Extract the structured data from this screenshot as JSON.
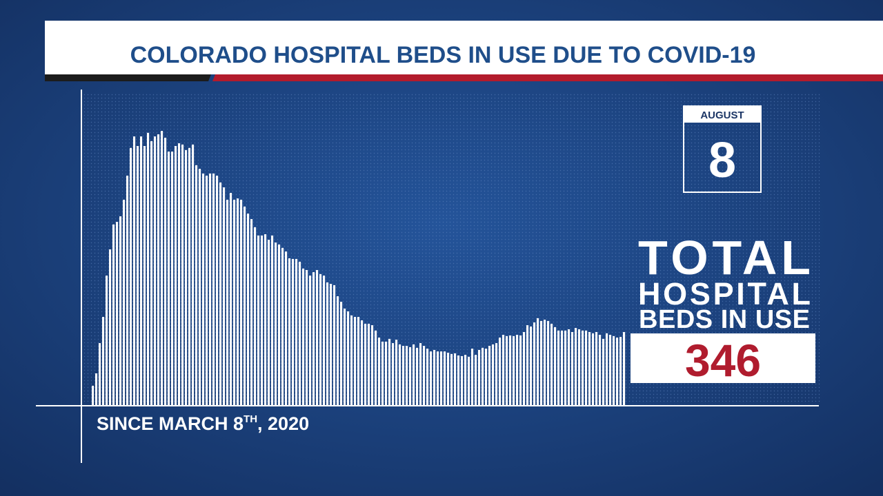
{
  "chart_data": {
    "type": "bar",
    "title": "COLORADO HOSPITAL BEDS IN USE DUE TO COVID-19",
    "x_label": {
      "text": "SINCE MARCH 8",
      "superscript": "TH",
      "suffix": ", 2020"
    },
    "date": {
      "month": "AUGUST",
      "day": 8
    },
    "total_label": [
      "TOTAL",
      "HOSPITAL",
      "BEDS IN USE"
    ],
    "color": "#ffffff",
    "values": [
      94,
      152,
      294,
      417,
      611,
      734,
      851,
      863,
      889,
      967,
      1080,
      1210,
      1264,
      1219,
      1264,
      1219,
      1281,
      1242,
      1264,
      1274,
      1290,
      1258,
      1193,
      1193,
      1219,
      1232,
      1226,
      1200,
      1210,
      1226,
      1129,
      1112,
      1090,
      1080,
      1090,
      1090,
      1080,
      1048,
      1025,
      967,
      999,
      967,
      973,
      967,
      935,
      902,
      876,
      838,
      799,
      799,
      805,
      779,
      799,
      766,
      757,
      741,
      724,
      692,
      689,
      689,
      676,
      644,
      637,
      611,
      627,
      637,
      618,
      611,
      579,
      572,
      566,
      514,
      488,
      456,
      443,
      424,
      417,
      417,
      401,
      385,
      385,
      378,
      353,
      320,
      301,
      301,
      314,
      294,
      310,
      288,
      281,
      281,
      275,
      288,
      272,
      294,
      281,
      268,
      255,
      262,
      255,
      255,
      255,
      249,
      243,
      246,
      236,
      233,
      239,
      230,
      268,
      239,
      262,
      272,
      268,
      281,
      288,
      294,
      320,
      333,
      327,
      330,
      327,
      333,
      330,
      346,
      378,
      372,
      391,
      411,
      398,
      404,
      398,
      385,
      369,
      353,
      353,
      353,
      359,
      346,
      365,
      359,
      353,
      353,
      346,
      340,
      346,
      333,
      314,
      340,
      333,
      327,
      320,
      323,
      346
    ]
  }
}
